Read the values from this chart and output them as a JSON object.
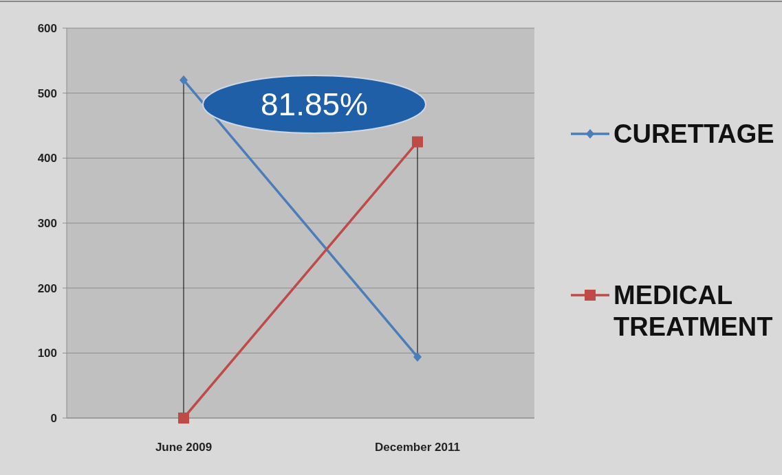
{
  "chart_data": {
    "type": "line",
    "categories": [
      "June 2009",
      "December 2011"
    ],
    "series": [
      {
        "name": "CURETTAGE",
        "color": "#4a7ebb",
        "values": [
          520,
          94
        ],
        "marker": "diamond"
      },
      {
        "name": "MEDICAL TREATMENT",
        "color": "#be4b48",
        "values": [
          0,
          425
        ],
        "marker": "square"
      },
      {
        "color": "#000000",
        "x": [
          "June 2009",
          "June 2009"
        ],
        "values": [
          0,
          520
        ],
        "marker": "none"
      },
      {
        "color": "#000000",
        "x": [
          "December 2011",
          "December 2011"
        ],
        "values": [
          94,
          425
        ],
        "marker": "none"
      }
    ],
    "ylim": [
      0,
      600
    ],
    "yticks": [
      0,
      100,
      200,
      300,
      400,
      500,
      600
    ],
    "grid": "y",
    "legend": "right",
    "annotations": [
      "81.85%"
    ]
  }
}
